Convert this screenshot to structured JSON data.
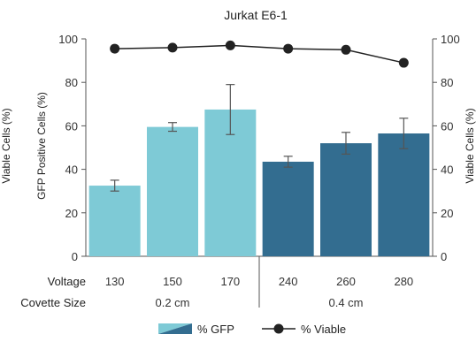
{
  "chart_data": {
    "type": "bar",
    "title": "Jurkat E6-1",
    "xlabel": "",
    "ylabel": "GFP Positive Cells (%)",
    "y2label": "Viable Cells (%)",
    "ylim": [
      0,
      100
    ],
    "y2lim": [
      0,
      100
    ],
    "yticks": [
      0,
      20,
      40,
      60,
      80,
      100
    ],
    "row_labels": {
      "voltage": "Voltage",
      "cuvette": "Covette Size"
    },
    "categories": [
      "130",
      "150",
      "170",
      "240",
      "260",
      "280"
    ],
    "groups": [
      {
        "label": "0.2 cm",
        "categories": [
          "130",
          "150",
          "170"
        ],
        "color": "#7ecad6"
      },
      {
        "label": "0.4 cm",
        "categories": [
          "240",
          "260",
          "280"
        ],
        "color": "#336d90"
      }
    ],
    "series": [
      {
        "name": "% GFP",
        "kind": "bar",
        "values": [
          32.5,
          59.5,
          67.5,
          43.5,
          52,
          56.5
        ],
        "errors": [
          2.5,
          2,
          11.5,
          2.5,
          5,
          7
        ]
      },
      {
        "name": "% Viable",
        "kind": "line",
        "axis": "right",
        "values": [
          95.5,
          96,
          97,
          95.5,
          95,
          89
        ]
      }
    ],
    "legend_position": "bottom",
    "grid": false,
    "colors": {
      "bar_light": "#7ecad6",
      "bar_dark": "#336d90",
      "line": "#222222",
      "error": "#555555"
    }
  }
}
